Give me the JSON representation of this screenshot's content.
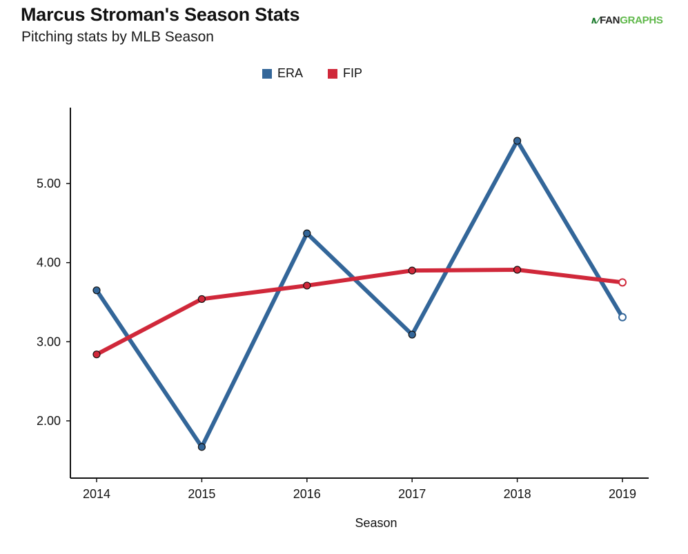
{
  "header": {
    "title": "Marcus Stroman's Season Stats",
    "subtitle": "Pitching stats by MLB Season",
    "logo_mark": "∧∕",
    "logo_fan": "FAN",
    "logo_graphs": "GRAPHS"
  },
  "chart_data": {
    "type": "line",
    "title": "Marcus Stroman's Season Stats",
    "subtitle": "Pitching stats by MLB Season",
    "xlabel": "Season",
    "ylabel": "",
    "categories": [
      "2014",
      "2015",
      "2016",
      "2017",
      "2018",
      "2019"
    ],
    "ylim": [
      1.3,
      6.0
    ],
    "yticks": [
      2.0,
      3.0,
      4.0,
      5.0
    ],
    "ytick_labels": [
      "2.00",
      "3.00",
      "4.00",
      "5.00"
    ],
    "grid": false,
    "legend_position": "top-center",
    "series": [
      {
        "name": "ERA",
        "color": "#336699",
        "values": [
          3.65,
          1.67,
          4.37,
          3.09,
          5.54,
          3.31
        ]
      },
      {
        "name": "FIP",
        "color": "#d0283a",
        "values": [
          2.84,
          3.54,
          3.71,
          3.9,
          3.91,
          3.75
        ]
      }
    ],
    "last_point_hollow": true
  }
}
